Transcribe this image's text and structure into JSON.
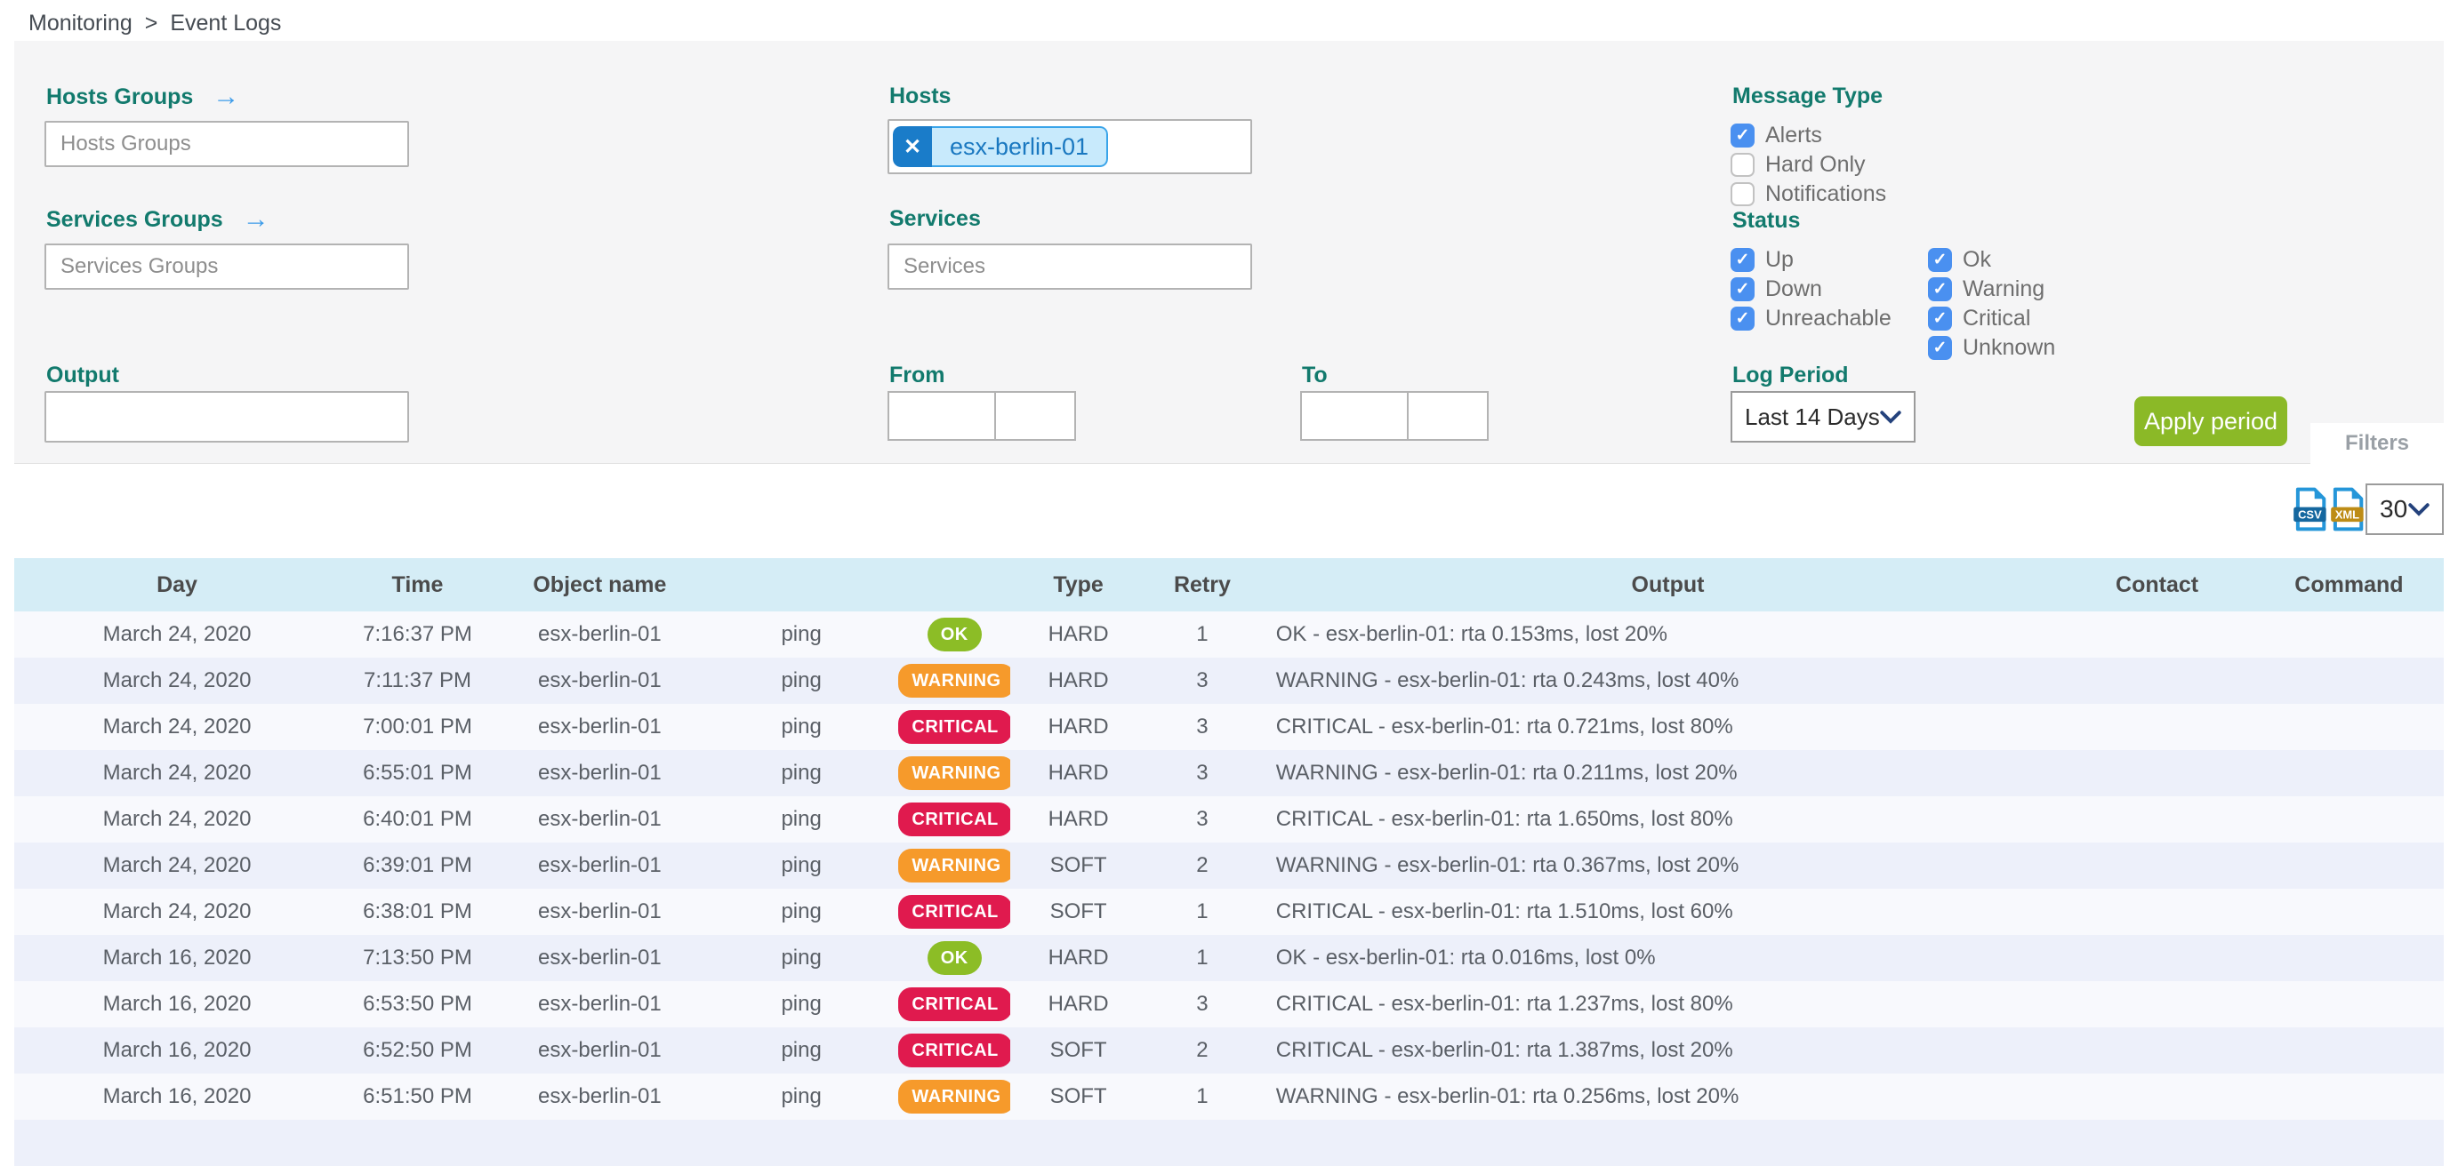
{
  "breadcrumb": {
    "items": [
      "Monitoring",
      "Event Logs"
    ],
    "separator": ">"
  },
  "icons": {
    "remove_glyph": "✕",
    "arrow_right": "→",
    "check_glyph": "✓"
  },
  "filters": {
    "panel_label": "Filters",
    "hosts_groups": {
      "label": "Hosts Groups",
      "placeholder": "Hosts Groups",
      "value": ""
    },
    "services_groups": {
      "label": "Services Groups",
      "placeholder": "Services Groups",
      "value": ""
    },
    "output": {
      "label": "Output",
      "value": ""
    },
    "hosts": {
      "label": "Hosts",
      "selected": "esx-berlin-01"
    },
    "services": {
      "label": "Services",
      "placeholder": "Services",
      "value": ""
    },
    "from": {
      "label": "From",
      "date_value": "",
      "time_value": ""
    },
    "to": {
      "label": "To",
      "date_value": "",
      "time_value": ""
    },
    "message_type": {
      "label": "Message Type",
      "options": [
        {
          "label": "Alerts",
          "checked": true
        },
        {
          "label": "Hard Only",
          "checked": false
        },
        {
          "label": "Notifications",
          "checked": false
        }
      ]
    },
    "status": {
      "label": "Status",
      "col1": [
        {
          "label": "Up",
          "checked": true
        },
        {
          "label": "Down",
          "checked": true
        },
        {
          "label": "Unreachable",
          "checked": true
        }
      ],
      "col2": [
        {
          "label": "Ok",
          "checked": true
        },
        {
          "label": "Warning",
          "checked": true
        },
        {
          "label": "Critical",
          "checked": true
        },
        {
          "label": "Unknown",
          "checked": true
        }
      ]
    },
    "log_period": {
      "label": "Log Period",
      "selected": "Last 14 Days"
    },
    "apply_button": "Apply period"
  },
  "toolbar": {
    "export": [
      {
        "label": "CSV"
      },
      {
        "label": "XML"
      }
    ],
    "page_size": "30"
  },
  "table": {
    "columns": [
      "Day",
      "Time",
      "Object name",
      "",
      "",
      "Type",
      "Retry",
      "Output",
      "Contact",
      "Command"
    ],
    "rows": [
      {
        "day": "March 24, 2020",
        "time": "7:16:37 PM",
        "object": "esx-berlin-01",
        "service": "ping",
        "status": "OK",
        "type": "HARD",
        "retry": "1",
        "output": "OK - esx-berlin-01: rta 0.153ms, lost 20%",
        "contact": "",
        "command": ""
      },
      {
        "day": "March 24, 2020",
        "time": "7:11:37 PM",
        "object": "esx-berlin-01",
        "service": "ping",
        "status": "WARNING",
        "type": "HARD",
        "retry": "3",
        "output": "WARNING - esx-berlin-01: rta 0.243ms, lost 40%",
        "contact": "",
        "command": ""
      },
      {
        "day": "March 24, 2020",
        "time": "7:00:01 PM",
        "object": "esx-berlin-01",
        "service": "ping",
        "status": "CRITICAL",
        "type": "HARD",
        "retry": "3",
        "output": "CRITICAL - esx-berlin-01: rta 0.721ms, lost 80%",
        "contact": "",
        "command": ""
      },
      {
        "day": "March 24, 2020",
        "time": "6:55:01 PM",
        "object": "esx-berlin-01",
        "service": "ping",
        "status": "WARNING",
        "type": "HARD",
        "retry": "3",
        "output": "WARNING - esx-berlin-01: rta 0.211ms, lost 20%",
        "contact": "",
        "command": ""
      },
      {
        "day": "March 24, 2020",
        "time": "6:40:01 PM",
        "object": "esx-berlin-01",
        "service": "ping",
        "status": "CRITICAL",
        "type": "HARD",
        "retry": "3",
        "output": "CRITICAL - esx-berlin-01: rta 1.650ms, lost 80%",
        "contact": "",
        "command": ""
      },
      {
        "day": "March 24, 2020",
        "time": "6:39:01 PM",
        "object": "esx-berlin-01",
        "service": "ping",
        "status": "WARNING",
        "type": "SOFT",
        "retry": "2",
        "output": "WARNING - esx-berlin-01: rta 0.367ms, lost 20%",
        "contact": "",
        "command": ""
      },
      {
        "day": "March 24, 2020",
        "time": "6:38:01 PM",
        "object": "esx-berlin-01",
        "service": "ping",
        "status": "CRITICAL",
        "type": "SOFT",
        "retry": "1",
        "output": "CRITICAL - esx-berlin-01: rta 1.510ms, lost 60%",
        "contact": "",
        "command": ""
      },
      {
        "day": "March 16, 2020",
        "time": "7:13:50 PM",
        "object": "esx-berlin-01",
        "service": "ping",
        "status": "OK",
        "type": "HARD",
        "retry": "1",
        "output": "OK - esx-berlin-01: rta 0.016ms, lost 0%",
        "contact": "",
        "command": ""
      },
      {
        "day": "March 16, 2020",
        "time": "6:53:50 PM",
        "object": "esx-berlin-01",
        "service": "ping",
        "status": "CRITICAL",
        "type": "HARD",
        "retry": "3",
        "output": "CRITICAL - esx-berlin-01: rta 1.237ms, lost 80%",
        "contact": "",
        "command": ""
      },
      {
        "day": "March 16, 2020",
        "time": "6:52:50 PM",
        "object": "esx-berlin-01",
        "service": "ping",
        "status": "CRITICAL",
        "type": "SOFT",
        "retry": "2",
        "output": "CRITICAL - esx-berlin-01: rta 1.387ms, lost 20%",
        "contact": "",
        "command": ""
      },
      {
        "day": "March 16, 2020",
        "time": "6:51:50 PM",
        "object": "esx-berlin-01",
        "service": "ping",
        "status": "WARNING",
        "type": "SOFT",
        "retry": "1",
        "output": "WARNING - esx-berlin-01: rta 0.256ms, lost 20%",
        "contact": "",
        "command": ""
      }
    ]
  },
  "colors": {
    "accent_teal": "#127a6d",
    "checkbox_blue": "#4a90f0",
    "chip_blue": "#1a7cc9",
    "apply_green": "#8bb927",
    "badge_ok": "#8cbd26",
    "badge_warning": "#f69a2b",
    "badge_critical": "#e01a4e",
    "table_header_bg": "#d5edf6",
    "row_odd": "#f8f9fd",
    "row_even": "#edf0fa",
    "csv_band": "#15679f",
    "xml_band": "#bd8c16",
    "file_blue": "#2596d9"
  }
}
